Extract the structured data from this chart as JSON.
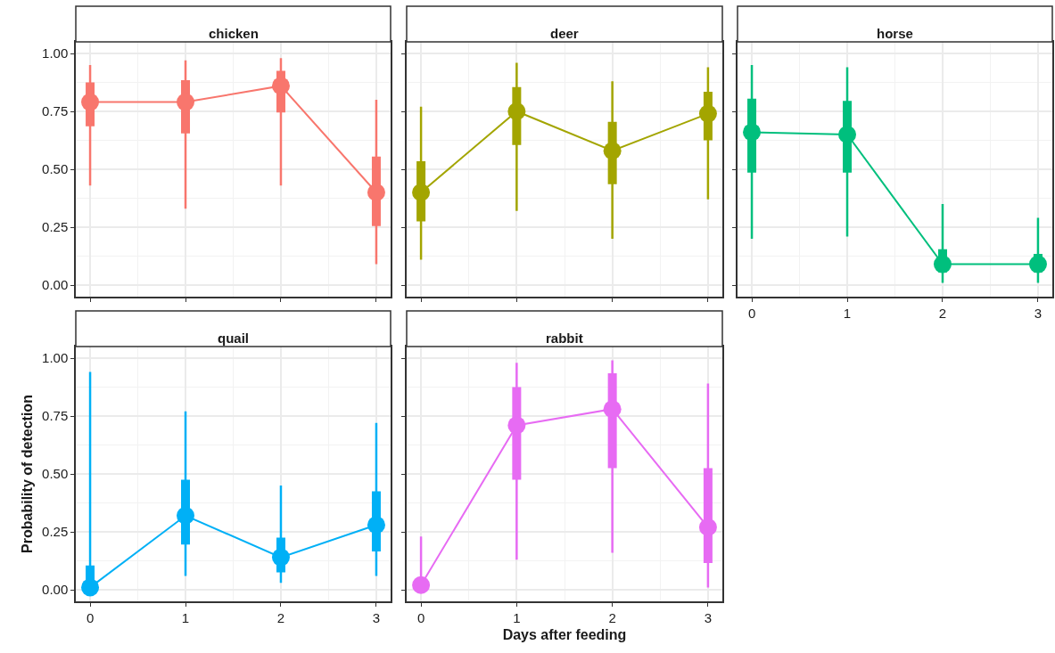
{
  "chart_data": [
    {
      "type": "line",
      "title": "chicken",
      "x": [
        0,
        1,
        2,
        3
      ],
      "xlim": [
        -0.15,
        3.15
      ],
      "xticks": [
        0,
        1,
        2,
        3
      ],
      "ylim": [
        -0.05,
        1.05
      ],
      "yticks": [
        {
          "value": 0,
          "label": "0.00"
        },
        {
          "value": 0.25,
          "label": "0.25"
        },
        {
          "value": 0.5,
          "label": "0.50"
        },
        {
          "value": 0.75,
          "label": "0.75"
        },
        {
          "value": 1,
          "label": "1.00"
        }
      ],
      "tick_labels": "y",
      "grid": true,
      "marker": "circle",
      "line_style": "solid",
      "series": [
        {
          "type": "box",
          "color": "#f8766d",
          "boxes": [
            {
              "low": 0.43,
              "q1": 0.69,
              "median": 0.79,
              "q3": 0.87,
              "high": 0.95
            },
            {
              "low": 0.33,
              "q1": 0.66,
              "median": 0.79,
              "q3": 0.88,
              "high": 0.97
            },
            {
              "low": 0.43,
              "q1": 0.75,
              "median": 0.86,
              "q3": 0.92,
              "high": 0.98
            },
            {
              "low": 0.09,
              "q1": 0.26,
              "median": 0.4,
              "q3": 0.55,
              "high": 0.8
            }
          ]
        },
        {
          "color": "#f8766d",
          "values": [
            0.79,
            0.79,
            0.86,
            0.4
          ]
        }
      ]
    },
    {
      "type": "line",
      "title": "deer",
      "x": [
        0,
        1,
        2,
        3
      ],
      "xlim": [
        -0.15,
        3.15
      ],
      "xticks": [
        0,
        1,
        2,
        3
      ],
      "ylim": [
        -0.05,
        1.05
      ],
      "yticks": [
        {
          "value": 0,
          "label": null
        },
        {
          "value": 0.25,
          "label": null
        },
        {
          "value": 0.5,
          "label": null
        },
        {
          "value": 0.75,
          "label": null
        },
        {
          "value": 1,
          "label": null
        }
      ],
      "tick_labels": false,
      "grid": true,
      "marker": "circle",
      "line_style": "solid",
      "series": [
        {
          "type": "box",
          "color": "#a3a500",
          "boxes": [
            {
              "low": 0.11,
              "q1": 0.28,
              "median": 0.4,
              "q3": 0.53,
              "high": 0.77
            },
            {
              "low": 0.32,
              "q1": 0.61,
              "median": 0.75,
              "q3": 0.85,
              "high": 0.96
            },
            {
              "low": 0.2,
              "q1": 0.44,
              "median": 0.58,
              "q3": 0.7,
              "high": 0.88
            },
            {
              "low": 0.37,
              "q1": 0.63,
              "median": 0.74,
              "q3": 0.83,
              "high": 0.94
            }
          ]
        },
        {
          "color": "#a3a500",
          "values": [
            0.4,
            0.75,
            0.58,
            0.74
          ]
        }
      ]
    },
    {
      "type": "line",
      "title": "horse",
      "x": [
        0,
        1,
        2,
        3
      ],
      "xlim": [
        -0.15,
        3.15
      ],
      "xticks": [
        0,
        1,
        2,
        3
      ],
      "ylim": [
        -0.05,
        1.05
      ],
      "yticks": [
        {
          "value": 0,
          "label": null
        },
        {
          "value": 0.25,
          "label": null
        },
        {
          "value": 0.5,
          "label": null
        },
        {
          "value": 0.75,
          "label": null
        },
        {
          "value": 1,
          "label": null
        }
      ],
      "tick_labels": "x",
      "grid": true,
      "marker": "circle",
      "line_style": "solid",
      "series": [
        {
          "type": "box",
          "color": "#00bf7d",
          "boxes": [
            {
              "low": 0.2,
              "q1": 0.49,
              "median": 0.66,
              "q3": 0.8,
              "high": 0.95
            },
            {
              "low": 0.21,
              "q1": 0.49,
              "median": 0.65,
              "q3": 0.79,
              "high": 0.94
            },
            {
              "low": 0.01,
              "q1": 0.06,
              "median": 0.09,
              "q3": 0.15,
              "high": 0.35
            },
            {
              "low": 0.01,
              "q1": 0.06,
              "median": 0.09,
              "q3": 0.13,
              "high": 0.29
            }
          ]
        },
        {
          "color": "#00bf7d",
          "values": [
            0.66,
            0.65,
            0.09,
            0.09
          ]
        }
      ]
    },
    {
      "type": "line",
      "title": "quail",
      "ylabel": "Probability of detection",
      "x": [
        0,
        1,
        2,
        3
      ],
      "xlim": [
        -0.15,
        3.15
      ],
      "xticks": [
        0,
        1,
        2,
        3
      ],
      "ylim": [
        -0.05,
        1.05
      ],
      "yticks": [
        {
          "value": 0,
          "label": "0.00"
        },
        {
          "value": 0.25,
          "label": "0.25"
        },
        {
          "value": 0.5,
          "label": "0.50"
        },
        {
          "value": 0.75,
          "label": "0.75"
        },
        {
          "value": 1,
          "label": "1.00"
        }
      ],
      "grid": true,
      "marker": "circle",
      "line_style": "solid",
      "series": [
        {
          "type": "box",
          "color": "#00b0f6",
          "boxes": [
            {
              "low": 0.0,
              "q1": 0.0,
              "median": 0.01,
              "q3": 0.1,
              "high": 0.94
            },
            {
              "low": 0.06,
              "q1": 0.2,
              "median": 0.32,
              "q3": 0.47,
              "high": 0.77
            },
            {
              "low": 0.03,
              "q1": 0.08,
              "median": 0.14,
              "q3": 0.22,
              "high": 0.45
            },
            {
              "low": 0.06,
              "q1": 0.17,
              "median": 0.28,
              "q3": 0.42,
              "high": 0.72
            }
          ]
        },
        {
          "color": "#00b0f6",
          "values": [
            0.01,
            0.32,
            0.14,
            0.28
          ]
        }
      ]
    },
    {
      "type": "line",
      "title": "rabbit",
      "xlabel": "Days after feeding",
      "x": [
        0,
        1,
        2,
        3
      ],
      "xlim": [
        -0.15,
        3.15
      ],
      "xticks": [
        0,
        1,
        2,
        3
      ],
      "ylim": [
        -0.05,
        1.05
      ],
      "yticks": [
        {
          "value": 0,
          "label": null
        },
        {
          "value": 0.25,
          "label": null
        },
        {
          "value": 0.5,
          "label": null
        },
        {
          "value": 0.75,
          "label": null
        },
        {
          "value": 1,
          "label": null
        }
      ],
      "tick_labels": "x",
      "grid": true,
      "marker": "circle",
      "line_style": "solid",
      "series": [
        {
          "type": "box",
          "color": "#e76bf3",
          "boxes": [
            {
              "low": 0.0,
              "q1": 0.01,
              "median": 0.02,
              "q3": 0.04,
              "high": 0.23
            },
            {
              "low": 0.13,
              "q1": 0.48,
              "median": 0.71,
              "q3": 0.87,
              "high": 0.98
            },
            {
              "low": 0.16,
              "q1": 0.53,
              "median": 0.78,
              "q3": 0.93,
              "high": 0.99
            },
            {
              "low": 0.01,
              "q1": 0.12,
              "median": 0.27,
              "q3": 0.52,
              "high": 0.89
            }
          ]
        },
        {
          "color": "#e76bf3",
          "values": [
            0.02,
            0.71,
            0.78,
            0.27
          ]
        }
      ]
    }
  ]
}
